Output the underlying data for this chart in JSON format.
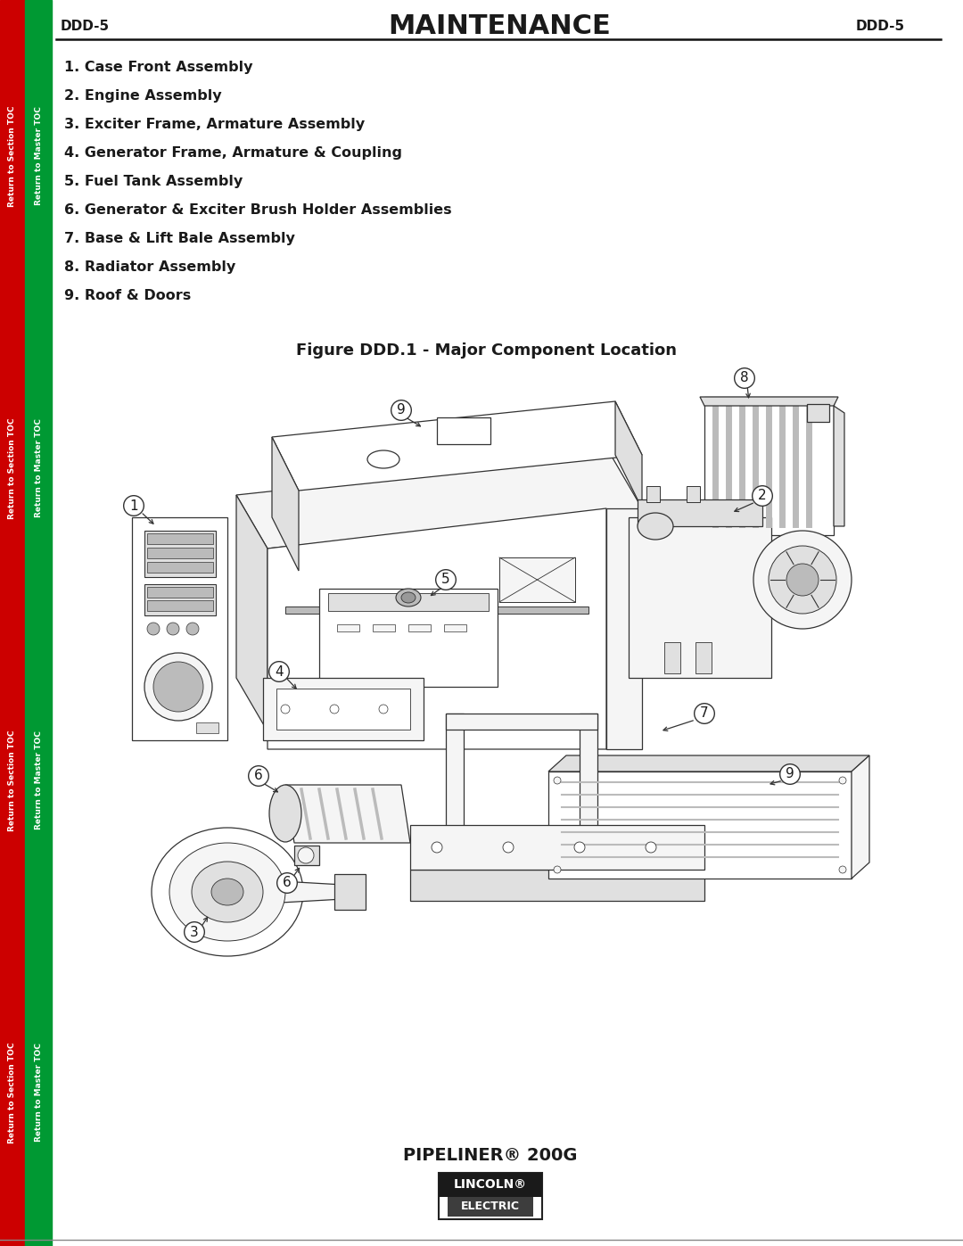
{
  "page_id": "DDD-5",
  "title": "MAINTENANCE",
  "figure_title": "Figure DDD.1 - Major Component Location",
  "product_name": "PIPELINER® 200G",
  "brand_top": "LINCOLN®",
  "brand_bottom": "ELECTRIC",
  "items": [
    "1. Case Front Assembly",
    "2. Engine Assembly",
    "3. Exciter Frame, Armature Assembly",
    "4. Generator Frame, Armature & Coupling",
    "5. Fuel Tank Assembly",
    "6. Generator & Exciter Brush Holder Assemblies",
    "7. Base & Lift Bale Assembly",
    "8. Radiator Assembly",
    "9. Roof & Doors"
  ],
  "sidebar_left_color": "#cc0000",
  "sidebar_right_color": "#009933",
  "sidebar_text_left": "Return to Section TOC",
  "sidebar_text_right": "Return to Master TOC",
  "bg_color": "#ffffff",
  "text_color": "#1a1a1a",
  "outline_color": "#333333",
  "fill_light": "#f5f5f5",
  "fill_mid": "#e0e0e0",
  "fill_dark": "#bbbbbb",
  "fill_darker": "#999999"
}
